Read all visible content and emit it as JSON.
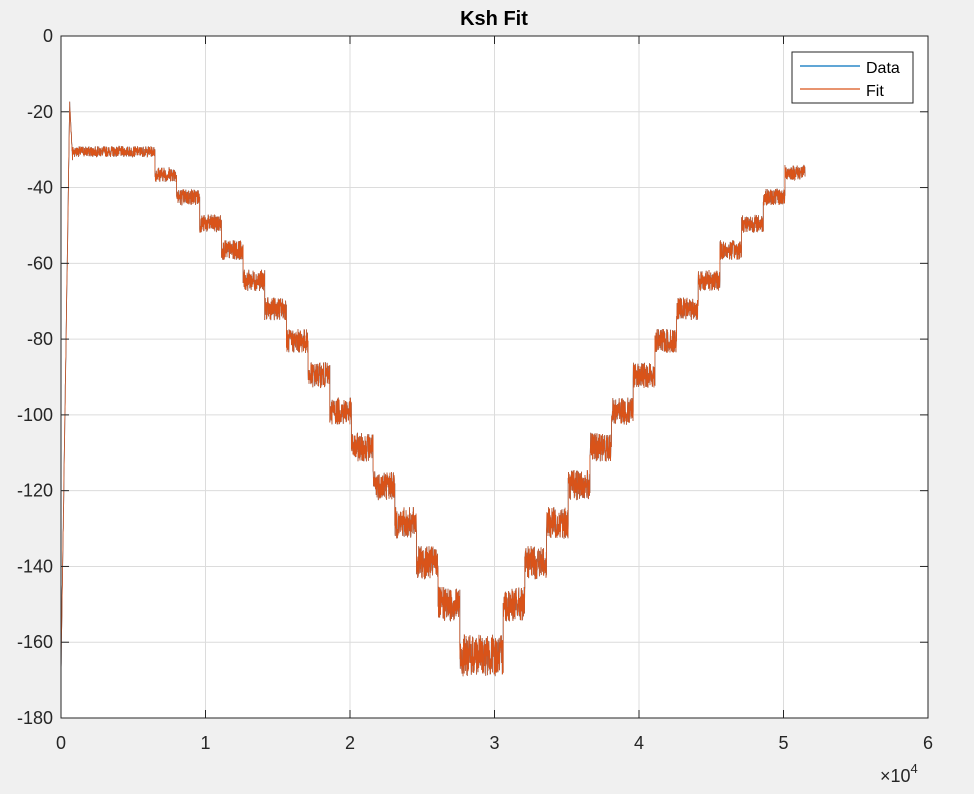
{
  "chart_data": {
    "type": "line",
    "title": "Ksh Fit",
    "xlabel": "",
    "ylabel": "",
    "xlim": [
      0,
      60000
    ],
    "ylim": [
      -180,
      0
    ],
    "x_ticks": [
      0,
      10000,
      20000,
      30000,
      40000,
      50000,
      60000
    ],
    "x_tick_labels": [
      "0",
      "1",
      "2",
      "3",
      "4",
      "5",
      "6"
    ],
    "x_exponent": {
      "base": "×10",
      "power": "4"
    },
    "y_ticks": [
      0,
      -20,
      -40,
      -60,
      -80,
      -100,
      -120,
      -140,
      -160,
      -180
    ],
    "y_tick_labels": [
      "0",
      "-20",
      "-40",
      "-60",
      "-80",
      "-100",
      "-120",
      "-140",
      "-160",
      "-180"
    ],
    "grid": true,
    "legend_position": "top-right",
    "series": [
      {
        "name": "Data",
        "color": "#0072bd"
      },
      {
        "name": "Fit",
        "color": "#d95319"
      }
    ],
    "steps": [
      {
        "x0": 0,
        "x1": 600,
        "y_start": -168,
        "y_end": -18,
        "noise": 1
      },
      {
        "x0": 600,
        "x1": 800,
        "y_start": -18,
        "y_end": -32,
        "noise": 1
      },
      {
        "x0": 800,
        "x1": 6500,
        "y": -30.5,
        "noise": 1.4
      },
      {
        "x0": 6500,
        "x1": 8000,
        "y": -36.5,
        "noise": 2.0
      },
      {
        "x0": 8000,
        "x1": 9600,
        "y": -42.5,
        "noise": 2.2
      },
      {
        "x0": 9600,
        "x1": 11100,
        "y": -49.5,
        "noise": 2.4
      },
      {
        "x0": 11100,
        "x1": 12600,
        "y": -56.5,
        "noise": 2.6
      },
      {
        "x0": 12600,
        "x1": 14100,
        "y": -64.5,
        "noise": 2.8
      },
      {
        "x0": 14100,
        "x1": 15600,
        "y": -72.0,
        "noise": 3.0
      },
      {
        "x0": 15600,
        "x1": 17100,
        "y": -80.5,
        "noise": 3.2
      },
      {
        "x0": 17100,
        "x1": 18600,
        "y": -89.5,
        "noise": 3.4
      },
      {
        "x0": 18600,
        "x1": 20100,
        "y": -99.0,
        "noise": 3.6
      },
      {
        "x0": 20100,
        "x1": 21600,
        "y": -108.5,
        "noise": 3.8
      },
      {
        "x0": 21600,
        "x1": 23100,
        "y": -118.5,
        "noise": 4.0
      },
      {
        "x0": 23100,
        "x1": 24600,
        "y": -128.5,
        "noise": 4.2
      },
      {
        "x0": 24600,
        "x1": 26100,
        "y": -139.0,
        "noise": 4.4
      },
      {
        "x0": 26100,
        "x1": 27600,
        "y": -150.0,
        "noise": 4.6
      },
      {
        "x0": 27600,
        "x1": 30600,
        "y": -163.5,
        "noise": 5.5
      },
      {
        "x0": 30600,
        "x1": 32100,
        "y": -150.0,
        "noise": 4.6
      },
      {
        "x0": 32100,
        "x1": 33600,
        "y": -139.0,
        "noise": 4.4
      },
      {
        "x0": 33600,
        "x1": 35100,
        "y": -128.5,
        "noise": 4.2
      },
      {
        "x0": 35100,
        "x1": 36600,
        "y": -118.5,
        "noise": 4.0
      },
      {
        "x0": 36600,
        "x1": 38100,
        "y": -108.5,
        "noise": 3.8
      },
      {
        "x0": 38100,
        "x1": 39600,
        "y": -99.0,
        "noise": 3.6
      },
      {
        "x0": 39600,
        "x1": 41100,
        "y": -89.5,
        "noise": 3.4
      },
      {
        "x0": 41100,
        "x1": 42600,
        "y": -80.5,
        "noise": 3.2
      },
      {
        "x0": 42600,
        "x1": 44100,
        "y": -72.0,
        "noise": 3.0
      },
      {
        "x0": 44100,
        "x1": 45600,
        "y": -64.5,
        "noise": 2.8
      },
      {
        "x0": 45600,
        "x1": 47100,
        "y": -56.5,
        "noise": 2.6
      },
      {
        "x0": 47100,
        "x1": 48600,
        "y": -49.5,
        "noise": 2.4
      },
      {
        "x0": 48600,
        "x1": 50100,
        "y": -42.5,
        "noise": 2.2
      },
      {
        "x0": 50100,
        "x1": 51500,
        "y": -36.0,
        "noise": 2.0
      }
    ]
  }
}
